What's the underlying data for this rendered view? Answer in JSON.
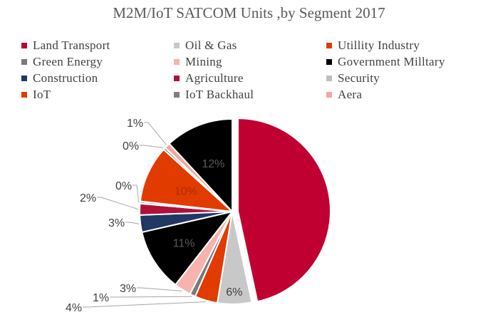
{
  "chart_data": {
    "type": "pie",
    "title": "M2M/IoT SATCOM Units ,by Segment 2017",
    "legend_position": "top",
    "slices": [
      {
        "name": "Land Transport",
        "value": 47,
        "label": "47%",
        "color": "#c00030",
        "label_color": "#c00030"
      },
      {
        "name": "Oil & Gas",
        "value": 6,
        "label": "6%",
        "color": "#c8c8c8",
        "label_color": "#404040"
      },
      {
        "name": "Utillity Industry",
        "value": 4,
        "label": "4%",
        "color": "#e23b00",
        "label_color": "#404040"
      },
      {
        "name": "Green Energy",
        "value": 1,
        "label": "1%",
        "color": "#7a7a7a",
        "label_color": "#404040"
      },
      {
        "name": "Mining",
        "value": 3,
        "label": "3%",
        "color": "#f7b3ad",
        "label_color": "#404040"
      },
      {
        "name": "Government Milltary",
        "value": 11,
        "label": "11%",
        "color": "#000000",
        "label_color": "#595959"
      },
      {
        "name": "Construction",
        "value": 3,
        "label": "3%",
        "color": "#203864",
        "label_color": "#404040"
      },
      {
        "name": "Agriculture",
        "value": 2,
        "label": "2%",
        "color": "#b0103c",
        "label_color": "#404040"
      },
      {
        "name": "Security",
        "value": 0,
        "label": "0%",
        "color": "#bfbfbf",
        "label_color": "#404040"
      },
      {
        "name": "IoT",
        "value": 10,
        "label": "10%",
        "color": "#e23b00",
        "label_color": "#a83000"
      },
      {
        "name": "IoT Backhaul",
        "value": 0,
        "label": "0%",
        "color": "#7f7f7f",
        "label_color": "#404040"
      },
      {
        "name": "Aera",
        "value": 1,
        "label": "1%",
        "color": "#f4a6a0",
        "label_color": "#404040"
      },
      {
        "name": "Government Milltary",
        "value": 12,
        "label": "12%",
        "color": "#000000",
        "label_color": "#595959"
      }
    ],
    "legend": [
      {
        "name": "Land Transport",
        "color": "#c00030"
      },
      {
        "name": "Oil & Gas",
        "color": "#c8c8c8"
      },
      {
        "name": "Utillity Industry",
        "color": "#e23b00"
      },
      {
        "name": "Green Energy",
        "color": "#7a7a7a"
      },
      {
        "name": "Mining",
        "color": "#f7b3ad"
      },
      {
        "name": "Government Milltary",
        "color": "#000000"
      },
      {
        "name": "Construction",
        "color": "#203864"
      },
      {
        "name": "Agriculture",
        "color": "#b0103c"
      },
      {
        "name": "Security",
        "color": "#bfbfbf"
      },
      {
        "name": "IoT",
        "color": "#e23b00"
      },
      {
        "name": "IoT Backhaul",
        "color": "#7f7f7f"
      },
      {
        "name": "Aera",
        "color": "#f4a6a0"
      }
    ]
  }
}
